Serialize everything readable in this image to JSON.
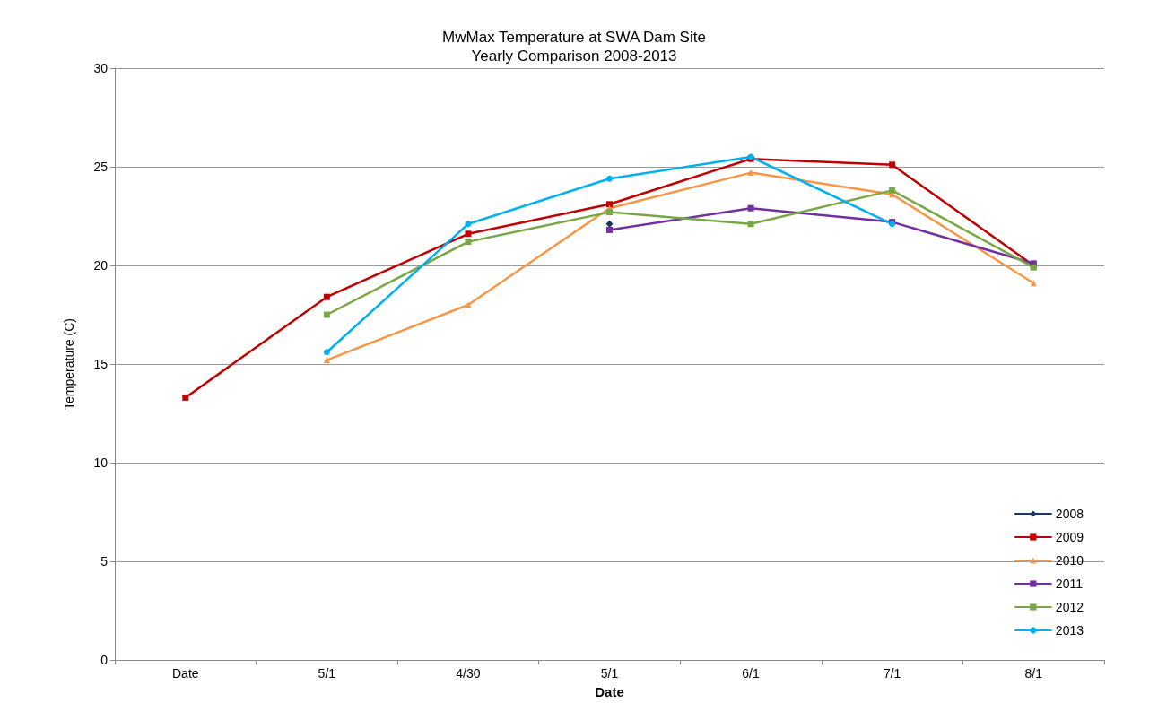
{
  "chart_data": {
    "type": "line",
    "title": "MwMax Temperature at SWA Dam Site",
    "subtitle": "Yearly Comparison 2008-2013",
    "xlabel": "Date",
    "ylabel": "Temperature (C)",
    "categories": [
      "Date",
      "5/1",
      "4/30",
      "5/1",
      "6/1",
      "7/1",
      "8/1"
    ],
    "series": [
      {
        "name": "2008",
        "color": "#17375e",
        "marker": "diamond",
        "values": [
          null,
          null,
          null,
          22.1,
          null,
          null,
          null
        ]
      },
      {
        "name": "2009",
        "color": "#c00000",
        "marker": "square",
        "values": [
          13.3,
          18.4,
          21.6,
          23.1,
          25.4,
          25.1,
          20.0
        ]
      },
      {
        "name": "2010",
        "color": "#f79646",
        "marker": "triangle",
        "values": [
          null,
          15.2,
          18.0,
          22.9,
          24.7,
          23.6,
          19.1
        ]
      },
      {
        "name": "2011",
        "color": "#7030a0",
        "marker": "square",
        "values": [
          null,
          null,
          null,
          21.8,
          22.9,
          22.2,
          20.1
        ]
      },
      {
        "name": "2012",
        "color": "#77a843",
        "marker": "square",
        "values": [
          null,
          17.5,
          21.2,
          22.7,
          22.1,
          23.8,
          19.9
        ]
      },
      {
        "name": "2013",
        "color": "#00b0f0",
        "marker": "circle",
        "values": [
          null,
          15.6,
          22.1,
          24.4,
          25.5,
          22.1,
          null
        ]
      }
    ],
    "ylim": [
      0,
      30
    ],
    "yticks": [
      0,
      5,
      10,
      15,
      20,
      25,
      30
    ],
    "grid": "y",
    "legend": "bottom right"
  }
}
